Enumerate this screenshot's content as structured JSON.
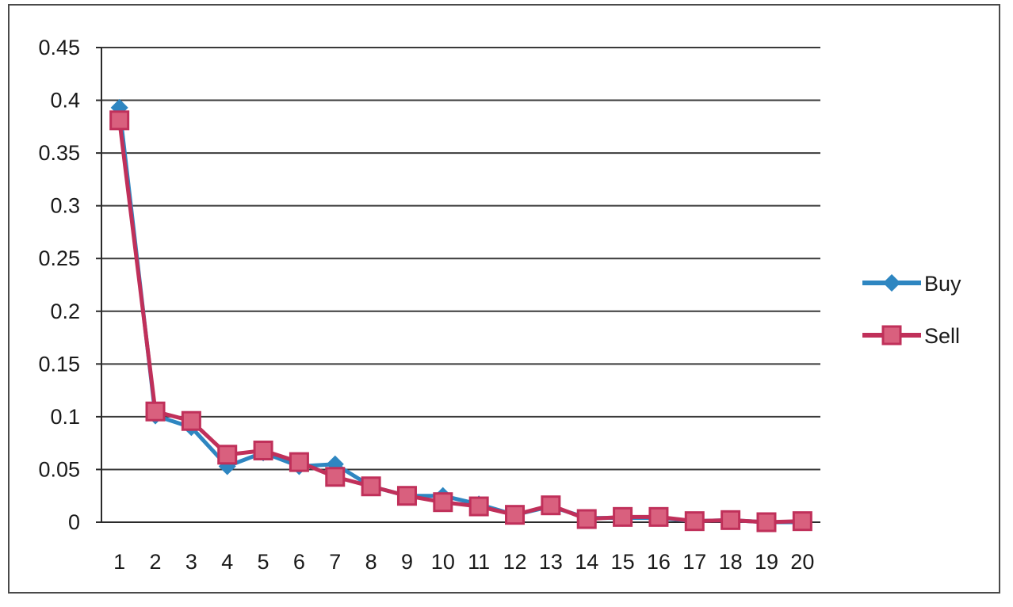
{
  "chart_data": {
    "type": "line",
    "categories": [
      "1",
      "2",
      "3",
      "4",
      "5",
      "6",
      "7",
      "8",
      "9",
      "10",
      "11",
      "12",
      "13",
      "14",
      "15",
      "16",
      "17",
      "18",
      "19",
      "20"
    ],
    "ylim": [
      0,
      0.45
    ],
    "yticks": [
      "0",
      "0.05",
      "0.1",
      "0.15",
      "0.2",
      "0.25",
      "0.3",
      "0.35",
      "0.4",
      "0.45"
    ],
    "grid": true,
    "legend_position": "right",
    "series": [
      {
        "name": "Buy",
        "color": "#2e86c1",
        "marker": "diamond",
        "values": [
          0.393,
          0.101,
          0.09,
          0.053,
          0.066,
          0.053,
          0.055,
          0.034,
          0.025,
          0.025,
          0.017,
          0.007,
          0.015,
          0.004,
          0.004,
          0.004,
          0.001,
          0.002,
          0.0,
          0.0
        ]
      },
      {
        "name": "Sell",
        "color": "#c0305a",
        "marker": "square",
        "values": [
          0.381,
          0.105,
          0.096,
          0.064,
          0.068,
          0.057,
          0.043,
          0.034,
          0.025,
          0.019,
          0.015,
          0.007,
          0.016,
          0.003,
          0.005,
          0.005,
          0.001,
          0.002,
          0.0,
          0.001
        ]
      }
    ]
  }
}
